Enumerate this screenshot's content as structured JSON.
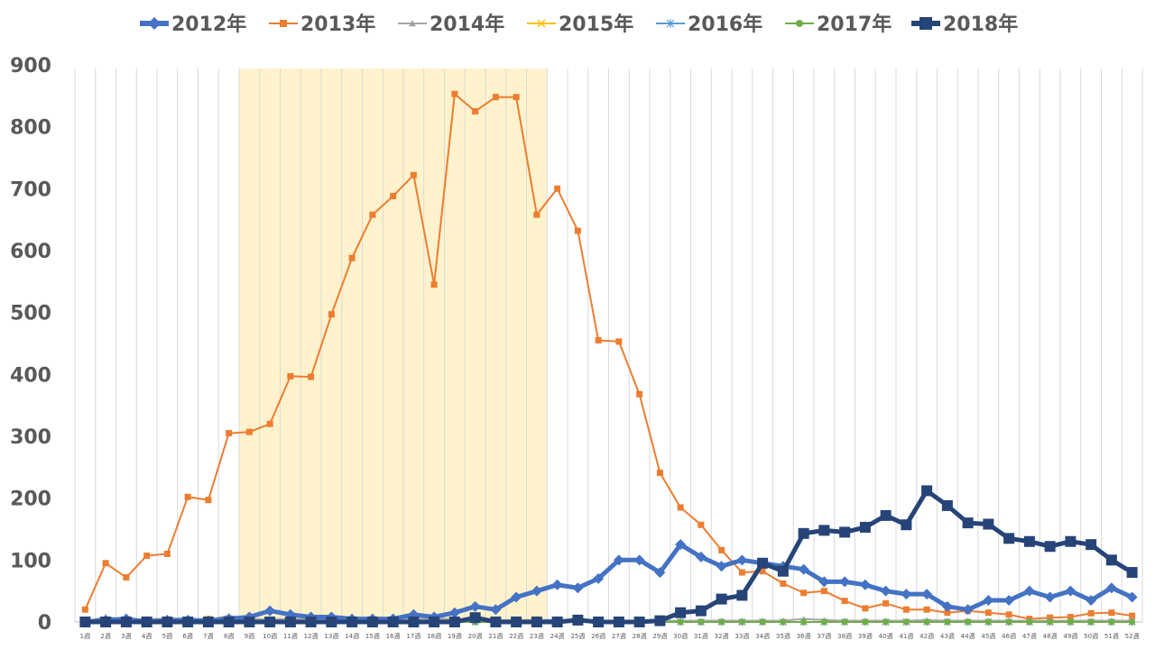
{
  "chart_data": {
    "type": "line",
    "title": "",
    "xlabel": "",
    "ylabel": "",
    "ylim": [
      0,
      900
    ],
    "yticks": [
      "0",
      "100",
      "200",
      "300",
      "400",
      "500",
      "600",
      "700",
      "800",
      "900"
    ],
    "grid": "vertical",
    "legend_position": "top",
    "highlight_band": {
      "from": "9週",
      "to": "23週",
      "color": "#FFF2CC"
    },
    "categories": [
      "1週",
      "2週",
      "3週",
      "4週",
      "5週",
      "6週",
      "7週",
      "8週",
      "9週",
      "10週",
      "11週",
      "12週",
      "13週",
      "14週",
      "15週",
      "16週",
      "17週",
      "18週",
      "19週",
      "20週",
      "21週",
      "22週",
      "23週",
      "24週",
      "25週",
      "26週",
      "27週",
      "28週",
      "29週",
      "30週",
      "31週",
      "32週",
      "33週",
      "34週",
      "35週",
      "36週",
      "37週",
      "38週",
      "39週",
      "40週",
      "41週",
      "42週",
      "43週",
      "44週",
      "45週",
      "46週",
      "47週",
      "48週",
      "49週",
      "50週",
      "51週",
      "52週"
    ],
    "series": [
      {
        "name": "2012年",
        "color": "#4472C4",
        "marker": "diamond",
        "width": 5,
        "values": [
          0,
          3,
          5,
          0,
          3,
          3,
          2,
          5,
          8,
          18,
          12,
          8,
          8,
          5,
          5,
          5,
          12,
          8,
          15,
          25,
          20,
          40,
          50,
          60,
          55,
          70,
          100,
          100,
          80,
          125,
          105,
          90,
          100,
          95,
          90,
          85,
          65,
          65,
          60,
          50,
          45,
          45,
          25,
          20,
          35,
          35,
          50,
          40,
          50,
          35,
          55,
          40
        ]
      },
      {
        "name": "2013年",
        "color": "#ED7D31",
        "marker": "square",
        "width": 2,
        "values": [
          20,
          95,
          72,
          107,
          110,
          202,
          197,
          305,
          307,
          320,
          397,
          396,
          497,
          588,
          658,
          688,
          722,
          545,
          853,
          825,
          848,
          848,
          658,
          700,
          632,
          455,
          453,
          368,
          241,
          185,
          157,
          116,
          80,
          82,
          62,
          47,
          50,
          34,
          22,
          30,
          20,
          20,
          15,
          18,
          15,
          12,
          5,
          7,
          8,
          14,
          15,
          10
        ]
      },
      {
        "name": "2014年",
        "color": "#A5A5A5",
        "marker": "triangle",
        "width": 2,
        "values": [
          1,
          8,
          3,
          5,
          5,
          3,
          4,
          10,
          5,
          4,
          5,
          5,
          5,
          5,
          5,
          5,
          5,
          5,
          5,
          3,
          3,
          3,
          3,
          3,
          3,
          2,
          2,
          2,
          2,
          2,
          2,
          2,
          2,
          2,
          2,
          5,
          3,
          2,
          2,
          2,
          2,
          3,
          2,
          2,
          2,
          2,
          2,
          2,
          2,
          2,
          2,
          2
        ]
      },
      {
        "name": "2015年",
        "color": "#FFC000",
        "marker": "x",
        "width": 2,
        "values": [
          0,
          0,
          0,
          0,
          0,
          0,
          5,
          0,
          0,
          0,
          0,
          0,
          0,
          0,
          0,
          0,
          0,
          0,
          0,
          0,
          0,
          0,
          0,
          0,
          0,
          0,
          0,
          0,
          0,
          0,
          0,
          0,
          0,
          0,
          0,
          0,
          0,
          0,
          0,
          0,
          0,
          0,
          0,
          0,
          0,
          0,
          0,
          0,
          0,
          0,
          0,
          0
        ]
      },
      {
        "name": "2016年",
        "color": "#5B9BD5",
        "marker": "star",
        "width": 2,
        "values": [
          0,
          0,
          0,
          0,
          0,
          0,
          0,
          0,
          0,
          0,
          0,
          0,
          0,
          0,
          0,
          0,
          0,
          0,
          0,
          0,
          0,
          0,
          3,
          3,
          0,
          0,
          0,
          0,
          0,
          0,
          0,
          0,
          0,
          0,
          0,
          0,
          0,
          0,
          0,
          0,
          0,
          0,
          0,
          0,
          0,
          0,
          0,
          0,
          0,
          0,
          0,
          0
        ]
      },
      {
        "name": "2017年",
        "color": "#70AD47",
        "marker": "circle",
        "width": 2,
        "values": [
          0,
          0,
          0,
          0,
          0,
          0,
          0,
          0,
          0,
          0,
          0,
          0,
          0,
          0,
          0,
          0,
          0,
          0,
          0,
          0,
          0,
          0,
          0,
          0,
          0,
          0,
          0,
          0,
          0,
          0,
          0,
          0,
          0,
          0,
          0,
          0,
          0,
          0,
          0,
          0,
          0,
          0,
          0,
          0,
          0,
          0,
          0,
          0,
          0,
          0,
          0,
          0
        ]
      },
      {
        "name": "2018年",
        "color": "#264478",
        "marker": "square",
        "width": 5,
        "values": [
          0,
          0,
          0,
          0,
          0,
          0,
          0,
          0,
          0,
          0,
          0,
          0,
          0,
          0,
          0,
          0,
          0,
          0,
          0,
          7,
          0,
          0,
          0,
          0,
          3,
          0,
          0,
          0,
          2,
          15,
          18,
          37,
          43,
          95,
          82,
          143,
          148,
          145,
          153,
          172,
          157,
          212,
          188,
          160,
          158,
          135,
          130,
          122,
          130,
          125,
          100,
          80
        ]
      }
    ]
  }
}
